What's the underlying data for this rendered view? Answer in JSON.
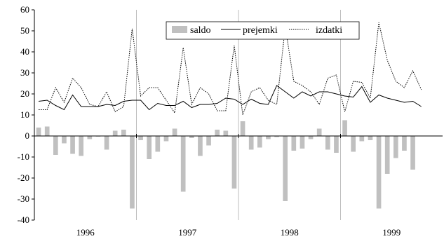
{
  "chart_data": {
    "type": "bar",
    "title": "",
    "xlabel": "",
    "ylabel": "",
    "ylim": [
      -40,
      60
    ],
    "y_ticks": [
      -40,
      -30,
      -20,
      -10,
      0,
      10,
      20,
      30,
      40,
      50,
      60
    ],
    "x_year_labels": [
      "1996",
      "1997",
      "1998",
      "1999"
    ],
    "grid": false,
    "legend_position": "top-center",
    "legend": [
      "saldo",
      "prejemki",
      "izdatki"
    ],
    "colors": {
      "saldo": "#c0c0c0",
      "prejemki": "#000000",
      "izdatki": "#000000"
    },
    "months": [
      "1996-01",
      "1996-02",
      "1996-03",
      "1996-04",
      "1996-05",
      "1996-06",
      "1996-07",
      "1996-08",
      "1996-09",
      "1996-10",
      "1996-11",
      "1996-12",
      "1997-01",
      "1997-02",
      "1997-03",
      "1997-04",
      "1997-05",
      "1997-06",
      "1997-07",
      "1997-08",
      "1997-09",
      "1997-10",
      "1997-11",
      "1997-12",
      "1998-01",
      "1998-02",
      "1998-03",
      "1998-04",
      "1998-05",
      "1998-06",
      "1998-07",
      "1998-08",
      "1998-09",
      "1998-10",
      "1998-11",
      "1998-12",
      "1999-01",
      "1999-02",
      "1999-03",
      "1999-04",
      "1999-05",
      "1999-06",
      "1999-07",
      "1999-08",
      "1999-09",
      "1999-10",
      "1999-11",
      "1999-12"
    ],
    "series": [
      {
        "name": "saldo",
        "type": "bar",
        "values": [
          4,
          4.5,
          -9,
          -3.5,
          -8.5,
          -9.5,
          -1.5,
          -0.3,
          -6.5,
          2.5,
          3,
          -34.5,
          -2,
          -11,
          -7.5,
          -2.5,
          3.5,
          -26.5,
          -1,
          -9.5,
          -4.5,
          3,
          2.5,
          -25,
          7,
          -6.5,
          -5.5,
          -1.5,
          -0.5,
          -31,
          -7,
          -6,
          -1.5,
          3.5,
          -6.5,
          -8,
          7.5,
          -7.5,
          -2.5,
          -2,
          -34.5,
          -18,
          -10.5,
          -7,
          -16,
          null,
          null,
          null
        ]
      },
      {
        "name": "prejemki",
        "type": "line",
        "dash": "solid",
        "values": [
          16.5,
          17,
          14.5,
          12.5,
          19.5,
          14,
          14,
          14,
          15,
          14.5,
          16.5,
          17,
          17,
          12.5,
          15.5,
          14.5,
          14.5,
          16.5,
          13.5,
          15,
          15,
          15.5,
          18,
          17.5,
          15,
          17.5,
          15.5,
          15,
          24,
          21,
          18,
          21,
          19,
          21,
          21,
          20,
          19,
          18.5,
          23.5,
          16,
          19.5,
          18,
          17,
          16,
          16.5,
          14,
          null,
          null
        ]
      },
      {
        "name": "izdatki",
        "type": "line",
        "dash": "dotted",
        "values": [
          12.5,
          12.5,
          23,
          16,
          27.5,
          23,
          15,
          14,
          21,
          11.5,
          14,
          51,
          19,
          23,
          23,
          17,
          11,
          42,
          15,
          23,
          20,
          12,
          12,
          43,
          10,
          21,
          23,
          17,
          15,
          52,
          26,
          24,
          21,
          15,
          27.5,
          29,
          11.5,
          26,
          25.5,
          18,
          54,
          36,
          26,
          23,
          31,
          22,
          null,
          null
        ]
      }
    ]
  }
}
